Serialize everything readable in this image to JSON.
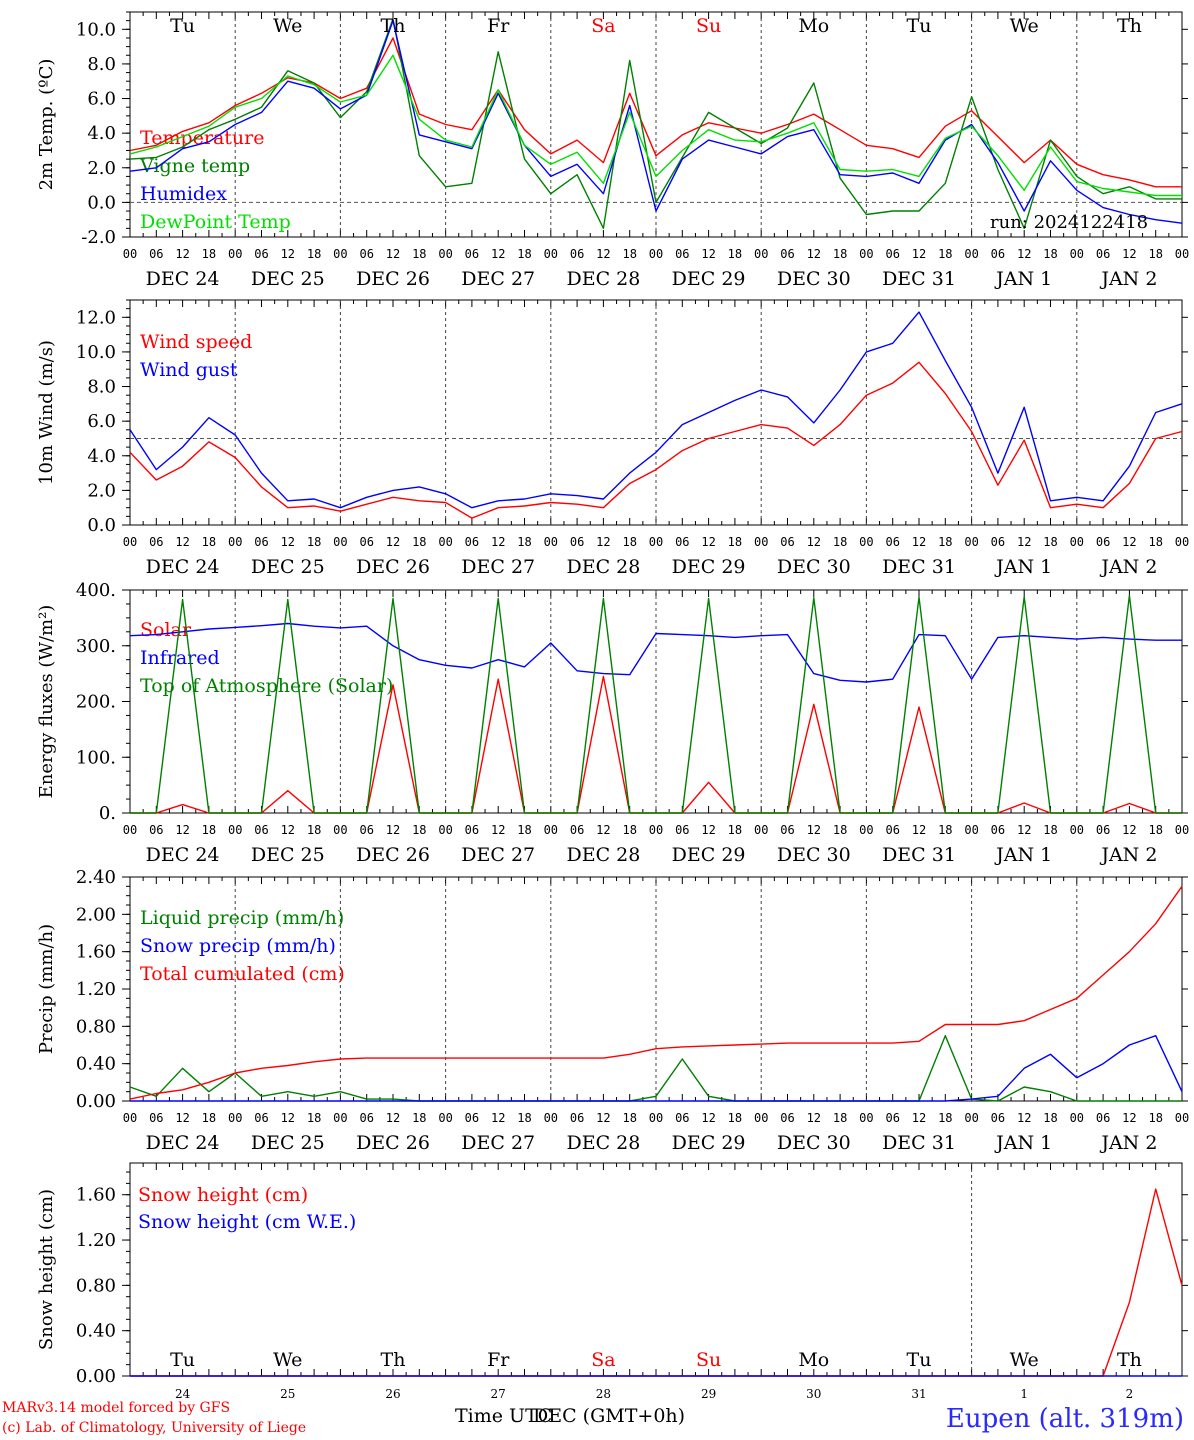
{
  "chart_data": [
    {
      "id": "temp",
      "type": "line",
      "ylabel": "2m Temp. (ºC)",
      "ylim": [
        -2,
        11
      ],
      "yticks": [
        "-2.0",
        "0.0",
        "2.0",
        "4.0",
        "6.0",
        "8.0",
        "10.0"
      ],
      "hline": 0,
      "run_label": "run: 2024122418",
      "x_hours": [
        0,
        6,
        12,
        18,
        24,
        30,
        36,
        42,
        48,
        54,
        60,
        66,
        72,
        78,
        84,
        90,
        96,
        102,
        108,
        114,
        120,
        126,
        132,
        138,
        144,
        150,
        156,
        162,
        168,
        174,
        180,
        186,
        192,
        198,
        204,
        210,
        216,
        222,
        228,
        234,
        240
      ],
      "series": [
        {
          "name": "Temperature",
          "color": "#ff0000",
          "values": [
            3.0,
            3.3,
            4.1,
            4.6,
            5.6,
            6.3,
            7.2,
            6.9,
            6.0,
            6.6,
            9.5,
            5.1,
            4.5,
            4.2,
            6.5,
            4.2,
            2.8,
            3.6,
            2.3,
            6.3,
            2.7,
            3.9,
            4.6,
            4.3,
            4.0,
            4.5,
            5.1,
            4.2,
            3.3,
            3.1,
            2.6,
            4.4,
            5.3,
            3.8,
            2.3,
            3.6,
            2.2,
            1.6,
            1.3,
            0.9,
            0.9
          ]
        },
        {
          "name": "Vigne temp",
          "color": "#008000",
          "values": [
            2.5,
            2.6,
            3.2,
            4.2,
            4.8,
            5.5,
            7.6,
            6.9,
            4.9,
            6.4,
            10.6,
            2.7,
            0.9,
            1.1,
            8.7,
            2.5,
            0.5,
            1.6,
            -1.5,
            8.2,
            0.0,
            2.6,
            5.2,
            4.3,
            3.4,
            4.3,
            6.9,
            1.4,
            -0.7,
            -0.5,
            -0.5,
            1.1,
            6.1,
            1.9,
            -1.5,
            3.6,
            1.5,
            0.5,
            0.9,
            0.2,
            0.2
          ]
        },
        {
          "name": "Humidex",
          "color": "#0000ff",
          "values": [
            1.8,
            2.0,
            3.1,
            3.5,
            4.5,
            5.2,
            7.0,
            6.6,
            5.4,
            6.2,
            10.5,
            3.9,
            3.5,
            3.1,
            6.3,
            3.3,
            1.5,
            2.2,
            0.5,
            5.6,
            -0.5,
            2.5,
            3.6,
            3.2,
            2.8,
            3.8,
            4.2,
            1.6,
            1.5,
            1.7,
            1.1,
            3.6,
            4.5,
            2.3,
            -0.5,
            2.4,
            0.7,
            -0.3,
            -0.7,
            -1.0,
            -1.2
          ]
        },
        {
          "name": "DewPoint Temp",
          "color": "#00e000",
          "values": [
            2.8,
            3.2,
            3.8,
            4.4,
            5.5,
            6.0,
            7.3,
            6.8,
            5.8,
            6.2,
            8.5,
            4.8,
            3.6,
            3.2,
            6.5,
            3.3,
            2.2,
            2.9,
            1.1,
            5.2,
            1.5,
            3.0,
            4.2,
            3.6,
            3.5,
            4.0,
            4.6,
            1.9,
            1.8,
            1.9,
            1.5,
            3.7,
            4.4,
            2.7,
            0.7,
            3.2,
            1.2,
            0.8,
            0.6,
            0.4,
            0.4
          ]
        }
      ]
    },
    {
      "id": "wind",
      "type": "line",
      "ylabel": "10m Wind (m/s)",
      "ylim": [
        0,
        13
      ],
      "yticks": [
        "0.0",
        "2.0",
        "4.0",
        "6.0",
        "8.0",
        "10.0",
        "12.0"
      ],
      "hline": 5,
      "x_hours": [
        0,
        6,
        12,
        18,
        24,
        30,
        36,
        42,
        48,
        54,
        60,
        66,
        72,
        78,
        84,
        90,
        96,
        102,
        108,
        114,
        120,
        126,
        132,
        138,
        144,
        150,
        156,
        162,
        168,
        174,
        180,
        186,
        192,
        198,
        204,
        210,
        216,
        222,
        228,
        234,
        240
      ],
      "series": [
        {
          "name": "Wind speed",
          "color": "#ff0000",
          "values": [
            4.2,
            2.6,
            3.4,
            4.8,
            3.9,
            2.2,
            1.0,
            1.1,
            0.8,
            1.2,
            1.6,
            1.4,
            1.3,
            0.4,
            1.0,
            1.1,
            1.3,
            1.2,
            1.0,
            2.4,
            3.2,
            4.3,
            5.0,
            5.4,
            5.8,
            5.6,
            4.6,
            5.8,
            7.5,
            8.2,
            9.4,
            7.6,
            5.4,
            2.3,
            4.9,
            1.0,
            1.2,
            1.0,
            2.4,
            5.0,
            5.4
          ]
        },
        {
          "name": "Wind gust",
          "color": "#0000ff",
          "values": [
            5.5,
            3.2,
            4.5,
            6.2,
            5.2,
            3.0,
            1.4,
            1.5,
            1.0,
            1.6,
            2.0,
            2.2,
            1.8,
            1.0,
            1.4,
            1.5,
            1.8,
            1.7,
            1.5,
            3.0,
            4.2,
            5.8,
            6.5,
            7.2,
            7.8,
            7.4,
            5.9,
            7.8,
            10.0,
            10.5,
            12.3,
            9.5,
            6.8,
            3.0,
            6.8,
            1.4,
            1.6,
            1.4,
            3.4,
            6.5,
            7.0
          ]
        }
      ]
    },
    {
      "id": "energy",
      "type": "line",
      "ylabel": "Energy fluxes (W/m²)",
      "ylim": [
        0,
        400
      ],
      "yticks": [
        "0.",
        "100.",
        "200.",
        "300.",
        "400."
      ],
      "x_hours": [
        0,
        6,
        12,
        18,
        24,
        30,
        36,
        42,
        48,
        54,
        60,
        66,
        72,
        78,
        84,
        90,
        96,
        102,
        108,
        114,
        120,
        126,
        132,
        138,
        144,
        150,
        156,
        162,
        168,
        174,
        180,
        186,
        192,
        198,
        204,
        210,
        216,
        222,
        228,
        234,
        240
      ],
      "series": [
        {
          "name": "Solar",
          "color": "#ff0000",
          "values": [
            0,
            0,
            15,
            0,
            0,
            0,
            40,
            0,
            0,
            0,
            230,
            0,
            0,
            0,
            240,
            0,
            0,
            0,
            245,
            0,
            0,
            0,
            55,
            0,
            0,
            0,
            195,
            0,
            0,
            0,
            190,
            0,
            0,
            0,
            18,
            0,
            0,
            0,
            17,
            0,
            0
          ]
        },
        {
          "name": "Infrared",
          "color": "#0000ff",
          "values": [
            318,
            320,
            325,
            330,
            333,
            336,
            340,
            335,
            332,
            335,
            300,
            275,
            265,
            260,
            275,
            262,
            305,
            255,
            250,
            248,
            322,
            320,
            318,
            315,
            318,
            320,
            250,
            238,
            235,
            240,
            320,
            318,
            240,
            315,
            318,
            315,
            312,
            315,
            312,
            310,
            310
          ]
        },
        {
          "name": "Top of Atmosphere (Solar)",
          "color": "#008000",
          "values": [
            0,
            0,
            383,
            0,
            0,
            0,
            383,
            0,
            0,
            0,
            385,
            0,
            0,
            0,
            385,
            0,
            0,
            0,
            385,
            0,
            0,
            0,
            385,
            0,
            0,
            0,
            386,
            0,
            0,
            0,
            387,
            0,
            0,
            0,
            388,
            0,
            0,
            0,
            390,
            0,
            0
          ]
        }
      ]
    },
    {
      "id": "precip",
      "type": "line",
      "ylabel": "Precip (mm/h)",
      "ylim": [
        0,
        2.4
      ],
      "yticks": [
        "0.00",
        "0.40",
        "0.80",
        "1.20",
        "1.60",
        "2.00",
        "2.40"
      ],
      "x_hours": [
        0,
        6,
        12,
        18,
        24,
        30,
        36,
        42,
        48,
        54,
        60,
        66,
        72,
        78,
        84,
        90,
        96,
        102,
        108,
        114,
        120,
        126,
        132,
        138,
        144,
        150,
        156,
        162,
        168,
        174,
        180,
        186,
        192,
        198,
        204,
        210,
        216,
        222,
        228,
        234,
        240
      ],
      "series": [
        {
          "name": "Liquid precip (mm/h)",
          "color": "#008000",
          "values": [
            0.15,
            0.05,
            0.35,
            0.1,
            0.3,
            0.05,
            0.1,
            0.05,
            0.1,
            0.02,
            0.02,
            0.0,
            0.0,
            0.0,
            0.0,
            0.0,
            0.0,
            0.0,
            0.0,
            0.0,
            0.05,
            0.45,
            0.05,
            0.0,
            0.0,
            0.0,
            0.0,
            0.0,
            0.0,
            0.0,
            0.0,
            0.7,
            0.02,
            0.0,
            0.15,
            0.1,
            0.0,
            0.0,
            0.0,
            0.0,
            0.0
          ]
        },
        {
          "name": "Snow precip (mm/h)",
          "color": "#0000ff",
          "values": [
            0,
            0,
            0,
            0,
            0,
            0,
            0,
            0,
            0,
            0,
            0,
            0,
            0,
            0,
            0,
            0,
            0,
            0,
            0,
            0,
            0,
            0,
            0,
            0,
            0,
            0,
            0,
            0,
            0,
            0,
            0,
            0,
            0.02,
            0.05,
            0.35,
            0.5,
            0.25,
            0.4,
            0.6,
            0.7,
            0.1
          ]
        },
        {
          "name": "Total cumulated (cm)",
          "color": "#ff0000",
          "values": [
            0.02,
            0.08,
            0.12,
            0.2,
            0.3,
            0.35,
            0.38,
            0.42,
            0.45,
            0.46,
            0.46,
            0.46,
            0.46,
            0.46,
            0.46,
            0.46,
            0.46,
            0.46,
            0.46,
            0.5,
            0.56,
            0.58,
            0.59,
            0.6,
            0.61,
            0.62,
            0.62,
            0.62,
            0.62,
            0.62,
            0.64,
            0.82,
            0.82,
            0.82,
            0.86,
            0.98,
            1.1,
            1.35,
            1.6,
            1.9,
            2.3
          ]
        }
      ]
    },
    {
      "id": "snow",
      "type": "line",
      "ylabel": "Snow height (cm)",
      "ylim": [
        0,
        1.88
      ],
      "yticks": [
        "0.00",
        "0.40",
        "0.80",
        "1.20",
        "1.60"
      ],
      "x_hours": [
        0,
        6,
        12,
        18,
        24,
        30,
        36,
        42,
        48,
        54,
        60,
        66,
        72,
        78,
        84,
        90,
        96,
        102,
        108,
        114,
        120,
        126,
        132,
        138,
        144,
        150,
        156,
        162,
        168,
        174,
        180,
        186,
        192,
        198,
        204,
        210,
        216,
        222,
        228,
        234,
        240
      ],
      "series": [
        {
          "name": "Snow height (cm)",
          "color": "#ff0000",
          "values": [
            0,
            0,
            0,
            0,
            0,
            0,
            0,
            0,
            0,
            0,
            0,
            0,
            0,
            0,
            0,
            0,
            0,
            0,
            0,
            0,
            0,
            0,
            0,
            0,
            0,
            0,
            0,
            0,
            0,
            0,
            0,
            0,
            0,
            0,
            0,
            0,
            0,
            0,
            0.65,
            1.65,
            0.8
          ]
        },
        {
          "name": "Snow height (cm W.E.)",
          "color": "#0000ff",
          "values": [
            0,
            0,
            0,
            0,
            0,
            0,
            0,
            0,
            0,
            0,
            0,
            0,
            0,
            0,
            0,
            0,
            0,
            0,
            0,
            0,
            0,
            0,
            0,
            0,
            0,
            0,
            0,
            0,
            0,
            0,
            0,
            0,
            0,
            0,
            0,
            0,
            0,
            0,
            0,
            0,
            0
          ]
        }
      ]
    }
  ],
  "day_names": [
    "Tu",
    "We",
    "Th",
    "Fr",
    "Sa",
    "Su",
    "Mo",
    "Tu",
    "We",
    "Th"
  ],
  "weekend_color": "#ff0000",
  "hour_ticks": [
    "00",
    "06",
    "12",
    "18"
  ],
  "date_labels": [
    "DEC 24",
    "DEC 25",
    "DEC 26",
    "DEC 27",
    "DEC 28",
    "DEC 29",
    "DEC 30",
    "DEC 31",
    "JAN  1",
    "JAN  2"
  ],
  "bottom_day_numbers": [
    "24",
    "25",
    "26",
    "27",
    "28",
    "29",
    "30",
    "31",
    "1",
    "2"
  ],
  "footer": {
    "credit_line1": "MARv3.14 model forced by GFS",
    "credit_line2": "(c) Lab. of Climatology, University of Liege",
    "xlabel_overlap": "Time UTC",
    "xlabel_rest": "DEC (GMT+0h)",
    "station": "Eupen (alt. 319m)"
  }
}
